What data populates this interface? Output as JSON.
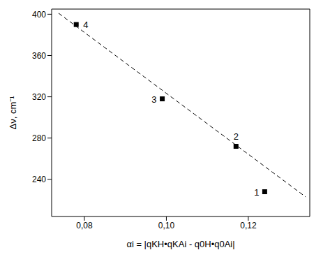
{
  "chart_data": {
    "type": "scatter",
    "x_label": "αi = |qKH•qKAi - q0H•q0Ai|",
    "y_label": "Δν, cm⁻¹",
    "xlim": [
      0.072,
      0.135
    ],
    "ylim": [
      204,
      405
    ],
    "xticks": [
      {
        "value": 0.08,
        "label": "0,08"
      },
      {
        "value": 0.1,
        "label": "0,10"
      },
      {
        "value": 0.12,
        "label": "0,12"
      }
    ],
    "yticks": [
      240,
      280,
      320,
      360,
      400
    ],
    "series": [
      {
        "type": "scatter",
        "marker": "square",
        "color": "#000000",
        "x": [
          0.124,
          0.117,
          0.099,
          0.078
        ],
        "values": [
          228,
          272,
          318,
          390
        ],
        "labels": [
          "1",
          "2",
          "3",
          "4"
        ]
      },
      {
        "type": "line",
        "line_style": "dashed",
        "color": "#000000",
        "x": [
          0.0737,
          0.134
        ],
        "values": [
          401,
          223
        ]
      }
    ]
  }
}
